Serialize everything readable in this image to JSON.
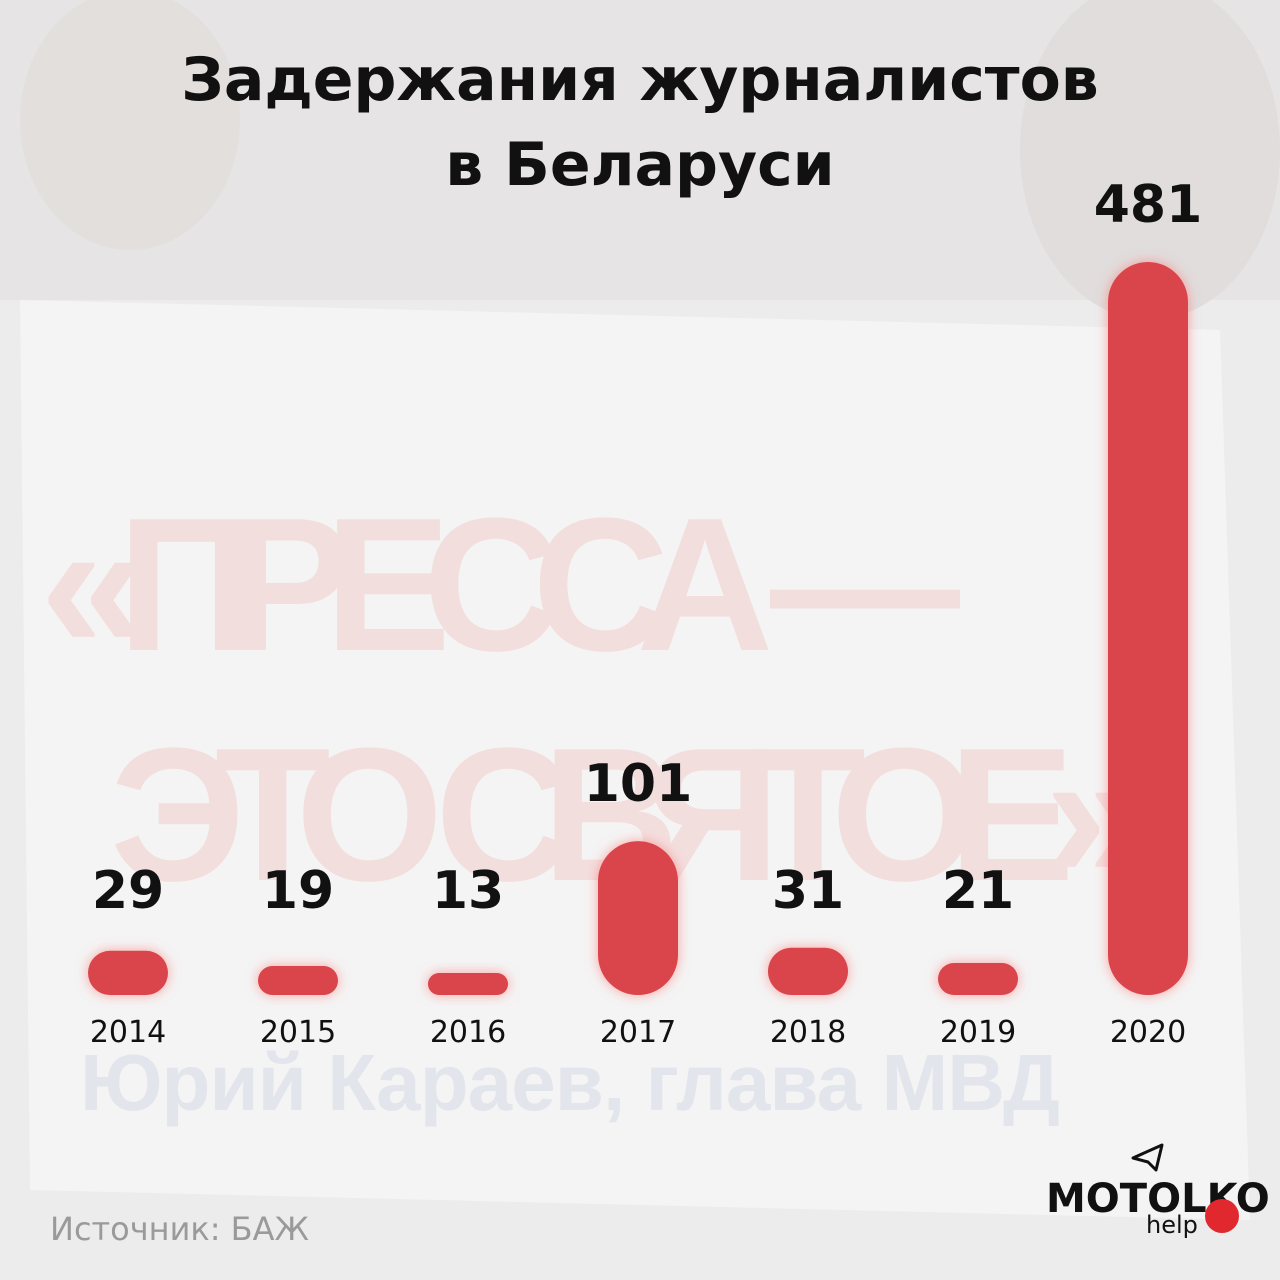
{
  "chart_data": {
    "type": "bar",
    "title": [
      "Задержания журналистов",
      "в Беларуси"
    ],
    "categories": [
      "2014",
      "2015",
      "2016",
      "2017",
      "2018",
      "2019",
      "2020"
    ],
    "values": [
      29,
      19,
      13,
      101,
      31,
      21,
      481
    ],
    "color": "#d9454b",
    "source": "Источник: БАЖ",
    "background_sign": [
      "«ПРЕССА —",
      "ЭТО СВЯТОЕ»",
      "Юрий Караев, глава МВД"
    ],
    "logo": {
      "name": "MOTOLKO",
      "sub": "help"
    }
  }
}
